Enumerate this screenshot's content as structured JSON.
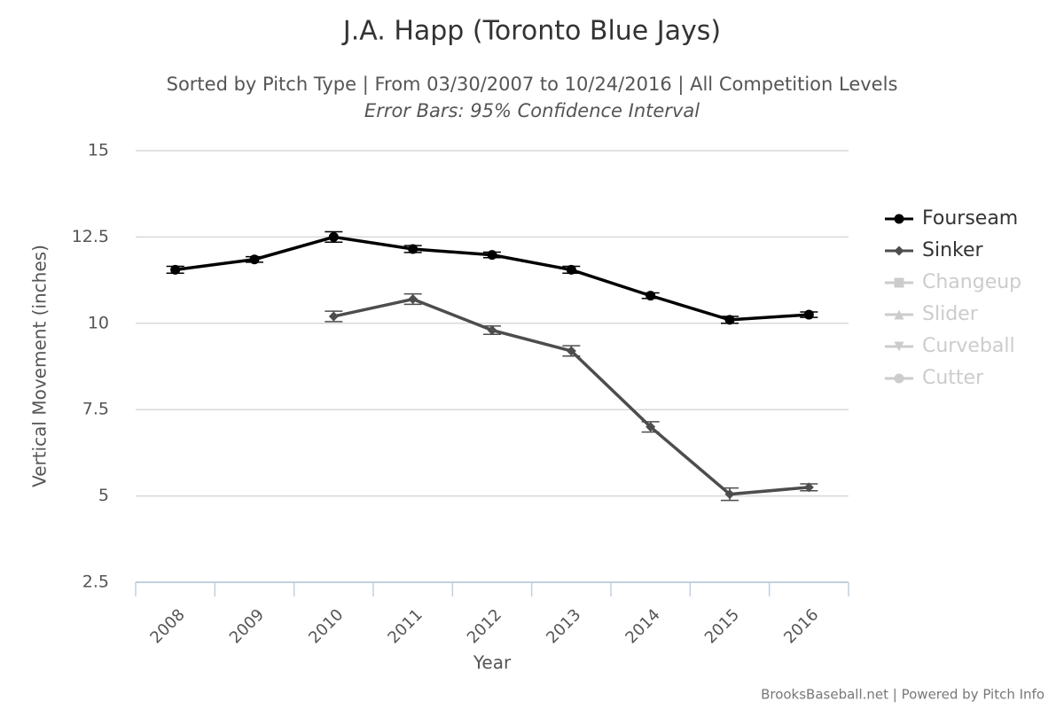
{
  "chart_data": {
    "type": "line",
    "title": "J.A. Happ (Toronto Blue Jays)",
    "subtitle": "Sorted by Pitch Type | From 03/30/2007 to 10/24/2016 | All Competition Levels",
    "subtitle2": "Error Bars: 95% Confidence Interval",
    "x_label": "Year",
    "y_label": "Vertical Movement (inches)",
    "credit": "BrooksBaseball.net | Powered by Pitch Info",
    "categories": [
      "2008",
      "2009",
      "2010",
      "2011",
      "2012",
      "2013",
      "2014",
      "2015",
      "2016"
    ],
    "ylim": [
      2.5,
      15
    ],
    "yticks": [
      2.5,
      5,
      7.5,
      10,
      12.5,
      15
    ],
    "grid": true,
    "legend": "right",
    "series": [
      {
        "name": "Fourseam",
        "color": "#000000",
        "marker": "circle",
        "visible": true,
        "values": [
          11.55,
          11.85,
          12.5,
          12.15,
          11.98,
          11.55,
          10.8,
          10.1,
          10.25
        ],
        "errors": [
          0.1,
          0.08,
          0.15,
          0.1,
          0.08,
          0.1,
          0.08,
          0.1,
          0.08
        ]
      },
      {
        "name": "Sinker",
        "color": "#4d4d4d",
        "marker": "diamond",
        "visible": true,
        "values": [
          null,
          null,
          10.2,
          10.7,
          9.8,
          9.2,
          7.0,
          5.05,
          5.25
        ],
        "errors": [
          null,
          null,
          0.15,
          0.15,
          0.12,
          0.15,
          0.15,
          0.18,
          0.1
        ]
      },
      {
        "name": "Changeup",
        "color": "#cccccc",
        "marker": "square",
        "visible": false,
        "values": [
          null,
          null,
          null,
          null,
          null,
          null,
          null,
          null,
          null
        ]
      },
      {
        "name": "Slider",
        "color": "#cccccc",
        "marker": "triangle",
        "visible": false,
        "values": [
          null,
          null,
          null,
          null,
          null,
          null,
          null,
          null,
          null
        ]
      },
      {
        "name": "Curveball",
        "color": "#cccccc",
        "marker": "triangle-down",
        "visible": false,
        "values": [
          null,
          null,
          null,
          null,
          null,
          null,
          null,
          null,
          null
        ]
      },
      {
        "name": "Cutter",
        "color": "#cccccc",
        "marker": "circle",
        "visible": false,
        "values": [
          null,
          null,
          null,
          null,
          null,
          null,
          null,
          null,
          null
        ]
      }
    ]
  }
}
